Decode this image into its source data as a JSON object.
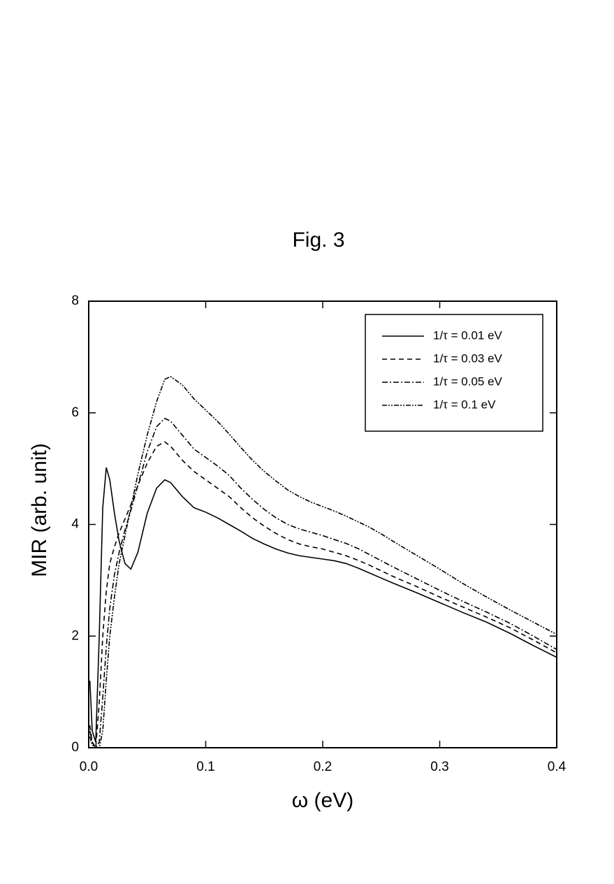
{
  "chart_data": {
    "type": "line",
    "title": "Fig. 3",
    "x_label": "ω (eV)",
    "y_label": "MIR (arb. unit)",
    "xlim": [
      0,
      0.4
    ],
    "ylim": [
      0,
      8
    ],
    "xticks": [
      {
        "value": 0,
        "label": "0.0"
      },
      0.1,
      0.2,
      0.3,
      0.4
    ],
    "yticks": [
      0,
      2,
      4,
      6,
      8
    ],
    "grid": false,
    "legend": "upper right",
    "x": [
      0.001,
      0.003,
      0.006,
      0.009,
      0.012,
      0.015,
      0.018,
      0.022,
      0.026,
      0.031,
      0.036,
      0.042,
      0.05,
      0.058,
      0.065,
      0.07,
      0.08,
      0.09,
      0.1,
      0.11,
      0.12,
      0.13,
      0.14,
      0.15,
      0.16,
      0.17,
      0.18,
      0.19,
      0.2,
      0.21,
      0.22,
      0.23,
      0.24,
      0.25,
      0.26,
      0.28,
      0.3,
      0.32,
      0.34,
      0.36,
      0.38,
      0.4
    ],
    "series": [
      {
        "name": "1/τ = 0.01 eV",
        "color": "#000000",
        "dash": "none",
        "values": [
          1.2,
          0.3,
          0.1,
          2.0,
          4.3,
          5.02,
          4.8,
          4.2,
          3.7,
          3.3,
          3.2,
          3.5,
          4.2,
          4.65,
          4.8,
          4.75,
          4.5,
          4.3,
          4.22,
          4.12,
          4.0,
          3.88,
          3.75,
          3.65,
          3.56,
          3.49,
          3.44,
          3.41,
          3.38,
          3.35,
          3.3,
          3.22,
          3.13,
          3.04,
          2.95,
          2.78,
          2.6,
          2.42,
          2.25,
          2.05,
          1.83,
          1.62
        ]
      },
      {
        "name": "1/τ = 0.03 eV",
        "color": "#000000",
        "dash": "7,5",
        "values": [
          0.4,
          0.1,
          0.0,
          0.8,
          2.0,
          2.8,
          3.3,
          3.6,
          3.85,
          4.1,
          4.35,
          4.7,
          5.1,
          5.4,
          5.48,
          5.4,
          5.15,
          4.95,
          4.8,
          4.65,
          4.5,
          4.3,
          4.12,
          3.97,
          3.84,
          3.73,
          3.65,
          3.6,
          3.56,
          3.5,
          3.44,
          3.36,
          3.27,
          3.17,
          3.07,
          2.89,
          2.7,
          2.52,
          2.34,
          2.15,
          1.93,
          1.7
        ]
      },
      {
        "name": "1/τ = 0.05 eV",
        "color": "#000000",
        "dash": "8,3,2,3",
        "values": [
          0.3,
          0.1,
          0.0,
          0.1,
          0.9,
          1.8,
          2.5,
          3.1,
          3.5,
          3.9,
          4.25,
          4.7,
          5.3,
          5.75,
          5.9,
          5.85,
          5.6,
          5.35,
          5.2,
          5.05,
          4.88,
          4.65,
          4.45,
          4.27,
          4.12,
          4.0,
          3.92,
          3.86,
          3.8,
          3.73,
          3.66,
          3.57,
          3.46,
          3.35,
          3.24,
          3.03,
          2.82,
          2.62,
          2.43,
          2.23,
          2.0,
          1.76
        ]
      },
      {
        "name": "1/τ = 0.1 eV",
        "color": "#000000",
        "dash": "7,2,2,2,2,2",
        "values": [
          0.2,
          0.05,
          0.0,
          0.0,
          0.3,
          1.2,
          2.0,
          2.7,
          3.3,
          3.8,
          4.3,
          4.9,
          5.6,
          6.2,
          6.6,
          6.65,
          6.5,
          6.25,
          6.05,
          5.85,
          5.62,
          5.38,
          5.15,
          4.95,
          4.78,
          4.62,
          4.5,
          4.4,
          4.32,
          4.24,
          4.15,
          4.05,
          3.95,
          3.83,
          3.7,
          3.45,
          3.2,
          2.94,
          2.7,
          2.47,
          2.25,
          2.03
        ]
      }
    ]
  }
}
